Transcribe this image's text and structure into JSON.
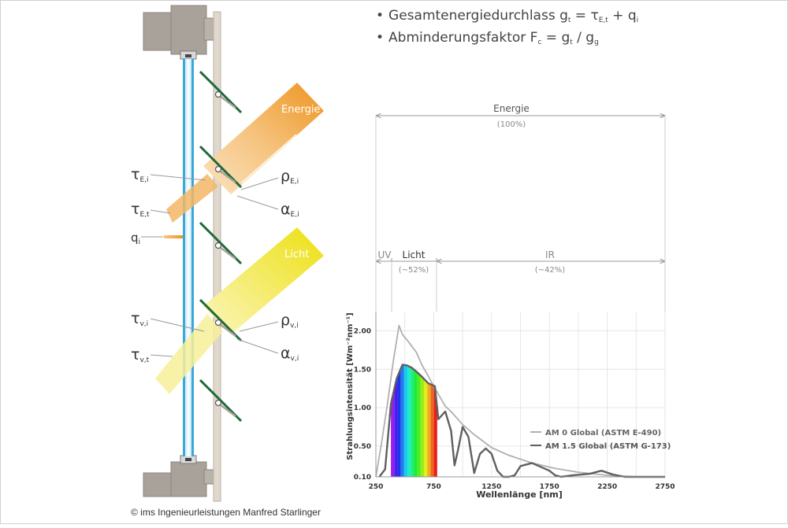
{
  "formulas": {
    "line1": {
      "bullet": "•",
      "text": "Gesamtenergiedurchlass g",
      "s1": "t",
      "eq": " = τ",
      "s2": "E,t",
      "plus": " + q",
      "s3": "i"
    },
    "line2": {
      "bullet": "•",
      "text": "Abminderungsfaktor F",
      "s1": "c",
      "eq": " = g",
      "s2": "t",
      "slash": " / g",
      "s3": "g"
    }
  },
  "facade": {
    "band_energy_label": "Energie",
    "band_light_label": "Licht",
    "labels": {
      "tau_E_i": {
        "sym": "τ",
        "sub": "E,i"
      },
      "rho_E_i": {
        "sym": "ρ",
        "sub": "E,i"
      },
      "tau_E_t": {
        "sym": "τ",
        "sub": "E,t"
      },
      "alpha_E_i": {
        "sym": "α",
        "sub": "E,i"
      },
      "q_i": {
        "sym": "q",
        "sub": "i"
      },
      "tau_v_i": {
        "sym": "τ",
        "sub": "v,i"
      },
      "rho_v_i": {
        "sym": "ρ",
        "sub": "v,i"
      },
      "tau_v_t": {
        "sym": "τ",
        "sub": "v,t"
      },
      "alpha_v_i": {
        "sym": "α",
        "sub": "v,i"
      }
    },
    "colors": {
      "energy": "#f0a030",
      "light": "#f0e030",
      "frame": "#a8a29a",
      "glass": "#3aa8d8",
      "lamella": "#1e6a3a"
    }
  },
  "spectrum": {
    "energie_label": "Energie",
    "energie_pct": "(100%)",
    "uv_label": "UV",
    "licht_label": "Licht",
    "licht_pct": "(~52%)",
    "ir_label": "IR",
    "ir_pct": "(~42%)"
  },
  "chart_data": {
    "type": "line",
    "xlabel": "Wellenlänge [nm]",
    "ylabel": "Strahlungsintensität [Wm⁻²nm⁻¹]",
    "xlim": [
      250,
      2750
    ],
    "ylim": [
      0.1,
      2.25
    ],
    "xticks": [
      250,
      750,
      1250,
      1750,
      2250,
      2750
    ],
    "xtick_labels": [
      "250",
      "750",
      "1250",
      "1750",
      "2250",
      "2750"
    ],
    "yticks": [
      0.1,
      0.5,
      1.0,
      1.5,
      2.0
    ],
    "ytick_labels": [
      "0.10",
      "0.50",
      "1.00",
      "1.50",
      "2.00"
    ],
    "grid": true,
    "legend_position": "right",
    "visible_band_nm": [
      380,
      780
    ],
    "series": [
      {
        "name": "AM 0 Global (ASTM E-490)",
        "color": "#b0b0b0",
        "x": [
          250,
          300,
          350,
          400,
          450,
          480,
          520,
          560,
          600,
          650,
          700,
          750,
          800,
          850,
          900,
          1000,
          1100,
          1250,
          1400,
          1600,
          1800,
          2000,
          2250,
          2500,
          2750
        ],
        "y": [
          0.1,
          0.55,
          1.05,
          1.6,
          2.07,
          1.95,
          1.88,
          1.8,
          1.72,
          1.55,
          1.42,
          1.28,
          1.15,
          1.02,
          0.95,
          0.78,
          0.65,
          0.48,
          0.38,
          0.28,
          0.21,
          0.16,
          0.12,
          0.09,
          0.07
        ]
      },
      {
        "name": "AM 1.5 Global (ASTM G-173)",
        "color": "#606060",
        "x": [
          280,
          330,
          380,
          430,
          480,
          520,
          560,
          600,
          650,
          700,
          760,
          790,
          850,
          900,
          930,
          960,
          1000,
          1050,
          1100,
          1150,
          1200,
          1250,
          1300,
          1350,
          1400,
          1450,
          1500,
          1600,
          1750,
          1800,
          1850,
          1950,
          2100,
          2200,
          2300,
          2400,
          2500,
          2600,
          2750
        ],
        "y": [
          0.1,
          0.2,
          1.05,
          1.38,
          1.56,
          1.55,
          1.52,
          1.47,
          1.4,
          1.32,
          1.28,
          0.85,
          0.95,
          0.7,
          0.25,
          0.45,
          0.75,
          0.62,
          0.15,
          0.4,
          0.47,
          0.4,
          0.18,
          0.1,
          0.1,
          0.12,
          0.24,
          0.28,
          0.18,
          0.12,
          0.1,
          0.12,
          0.14,
          0.18,
          0.13,
          0.1,
          0.1,
          0.1,
          0.1
        ]
      }
    ]
  }
}
